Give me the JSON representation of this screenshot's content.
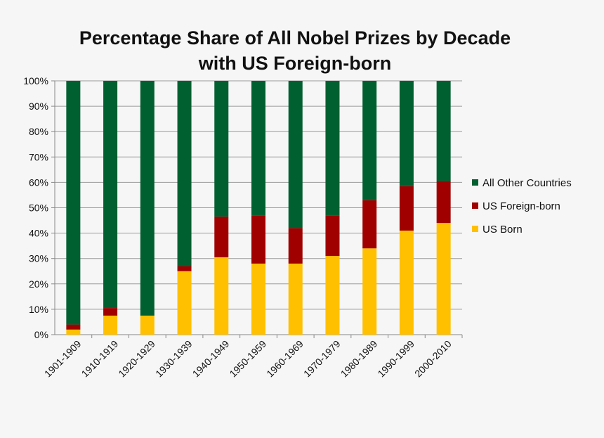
{
  "title_line1": "Percentage Share of All Nobel Prizes by Decade",
  "title_line2": "with US Foreign-born",
  "chart_data": {
    "type": "bar",
    "stacked": true,
    "percent": true,
    "title": "Percentage Share of All Nobel Prizes by Decade with US Foreign-born",
    "xlabel": "",
    "ylabel": "",
    "ylim": [
      0,
      100
    ],
    "yticks": [
      "0%",
      "10%",
      "20%",
      "30%",
      "40%",
      "50%",
      "60%",
      "70%",
      "80%",
      "90%",
      "100%"
    ],
    "grid": true,
    "legend_position": "right",
    "categories": [
      "1901-1909",
      "1910-1919",
      "1920-1929",
      "1930-1939",
      "1940-1949",
      "1950-1959",
      "1960-1969",
      "1970-1979",
      "1980-1989",
      "1990-1999",
      "2000-2010"
    ],
    "series": [
      {
        "name": "US Born",
        "color": "#ffc000",
        "values": [
          2,
          7.5,
          7.5,
          25,
          30.5,
          28,
          28,
          31,
          34,
          41,
          44
        ]
      },
      {
        "name": "US Foreign-born",
        "color": "#a00000",
        "values": [
          2,
          3,
          0,
          2,
          16,
          19,
          14,
          16,
          19,
          17.5,
          16.5
        ]
      },
      {
        "name": "All Other Countries",
        "color": "#006030",
        "values": [
          96,
          89.5,
          92.5,
          73,
          53.5,
          53,
          58,
          53,
          47,
          41.5,
          39.5
        ]
      }
    ],
    "legend_order": [
      "All Other Countries",
      "US Foreign-born",
      "US Born"
    ]
  }
}
